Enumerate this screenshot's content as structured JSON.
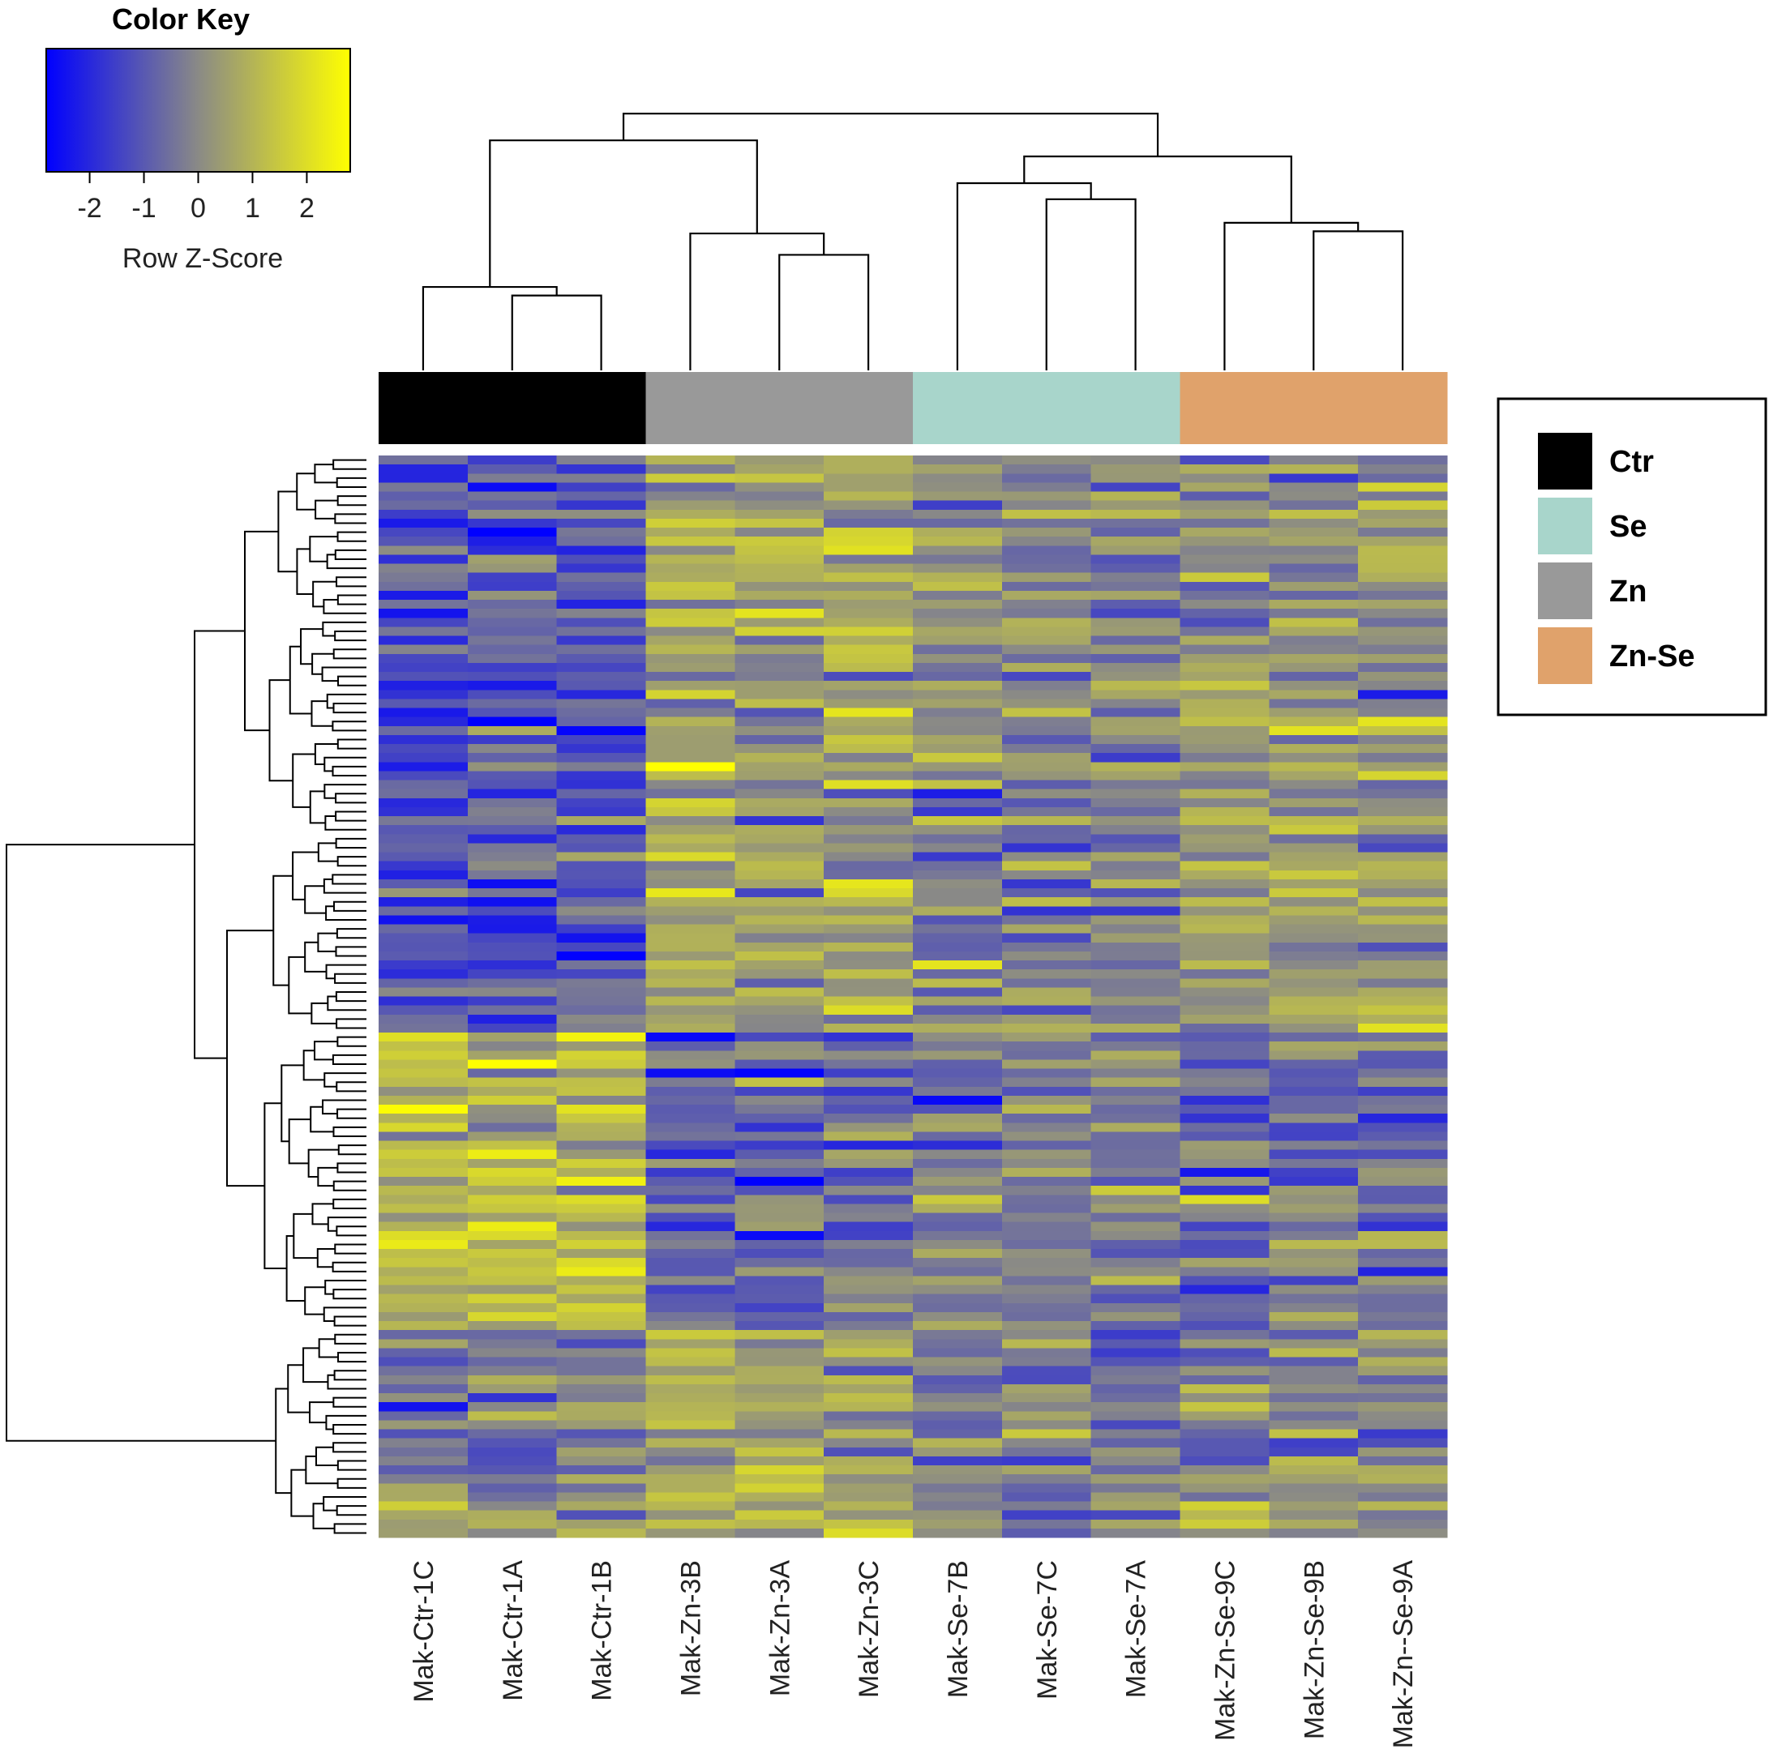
{
  "chart_data": {
    "type": "heatmap",
    "title": "",
    "color_key": {
      "title": "Color Key",
      "label": "Row Z-Score",
      "range": [
        -2.8,
        2.8
      ],
      "ticks": [
        -2,
        -1,
        0,
        1,
        2
      ],
      "tick_labels": [
        "-2",
        "-1",
        "0",
        "1",
        "2"
      ],
      "colors": {
        "low": "#0000ff",
        "mid": "#8a8a86",
        "high": "#ffff00"
      }
    },
    "columns": [
      "Mak-Ctr-1C",
      "Mak-Ctr-1A",
      "Mak-Ctr-1B",
      "Mak-Zn-3B",
      "Mak-Zn-3A",
      "Mak-Zn-3C",
      "Mak-Se-7B",
      "Mak-Se-7C",
      "Mak-Se-7A",
      "Mak-Zn-Se-9C",
      "Mak-Zn-Se-9B",
      "Mak-Zn--Se-9A"
    ],
    "column_groups": [
      "Ctr",
      "Ctr",
      "Ctr",
      "Zn",
      "Zn",
      "Zn",
      "Se",
      "Se",
      "Se",
      "Zn-Se",
      "Zn-Se",
      "Zn-Se"
    ],
    "legend": {
      "position": "right",
      "entries": [
        {
          "label": "Ctr",
          "color": "#000000"
        },
        {
          "label": "Se",
          "color": "#a8d5cb"
        },
        {
          "label": "Zn",
          "color": "#999999"
        },
        {
          "label": "Zn-Se",
          "color": "#e0a26b"
        }
      ]
    },
    "n_rows": 120,
    "row_blocks": [
      {
        "rows": [
          0,
          17
        ],
        "group_mean_z": {
          "Ctr": -1.6,
          "Zn": 1.0,
          "Se": -0.2,
          "Zn-Se": 0.4
        }
      },
      {
        "rows": [
          18,
          41
        ],
        "group_mean_z": {
          "Ctr": -1.7,
          "Zn": 0.7,
          "Se": 0.1,
          "Zn-Se": 0.5
        }
      },
      {
        "rows": [
          42,
          63
        ],
        "group_mean_z": {
          "Ctr": -1.6,
          "Zn": 0.6,
          "Se": -0.4,
          "Zn-Se": 0.6
        }
      },
      {
        "rows": [
          64,
          96
        ],
        "group_mean_z": {
          "Ctr": 1.5,
          "Zn": -0.9,
          "Se": -0.3,
          "Zn-Se": -0.6
        }
      },
      {
        "rows": [
          97,
          119
        ],
        "group_mean_z": {
          "Ctr": -0.3,
          "Zn": 1.1,
          "Se": -0.6,
          "Zn-Se": 0.1
        }
      }
    ],
    "column_dendrogram": {
      "merges": [
        {
          "left": "Mak-Ctr-1A",
          "right": "Mak-Ctr-1B",
          "height": 0.7
        },
        {
          "left": "Mak-Ctr-1C",
          "right": "(1A,1B)",
          "height": 0.78
        },
        {
          "left": "Mak-Zn-3A",
          "right": "Mak-Zn-3C",
          "height": 1.08
        },
        {
          "left": "Mak-Zn-3B",
          "right": "(3A,3C)",
          "height": 1.28
        },
        {
          "left": "Ctr",
          "right": "Zn",
          "height": 2.15
        },
        {
          "left": "Mak-Se-7A",
          "right": "Mak-Se-7C",
          "height": 1.6
        },
        {
          "left": "Mak-Se-7B",
          "right": "(7A,7C)",
          "height": 1.75
        },
        {
          "left": "Mak-Zn-Se-9B",
          "right": "Mak-Zn--Se-9A",
          "height": 1.3
        },
        {
          "left": "Mak-Zn-Se-9C",
          "right": "(9B,9A)",
          "height": 1.38
        },
        {
          "left": "Se",
          "right": "Zn-Se",
          "height": 2.0
        },
        {
          "left": "(Ctr,Zn)",
          "right": "(Se,Zn-Se)",
          "height": 2.4
        }
      ]
    }
  }
}
